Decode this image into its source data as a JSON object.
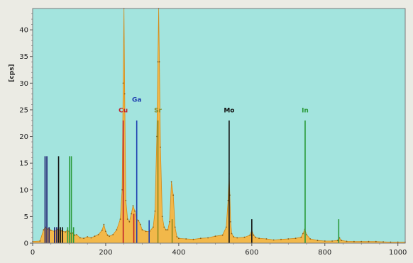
{
  "chart_data": {
    "type": "line",
    "title": "",
    "xlabel": "",
    "ylabel": "[cps]",
    "xlim": [
      0,
      1020
    ],
    "ylim": [
      0,
      44
    ],
    "x_ticks": [
      0,
      200,
      400,
      600,
      800,
      1000
    ],
    "y_ticks": [
      0,
      5,
      10,
      15,
      20,
      25,
      30,
      35,
      40
    ],
    "colors": {
      "plot_background": "#a3e4de",
      "spectrum_fill": "#f2b84a",
      "spectrum_line": "#d48a18",
      "frame": "#7a7a7a"
    },
    "spectrum": {
      "x": [
        0,
        20,
        30,
        35,
        40,
        45,
        50,
        60,
        70,
        80,
        90,
        95,
        100,
        105,
        110,
        115,
        120,
        130,
        140,
        150,
        160,
        170,
        180,
        190,
        195,
        200,
        205,
        210,
        220,
        230,
        240,
        245,
        248,
        250,
        252,
        255,
        260,
        265,
        270,
        275,
        280,
        285,
        290,
        295,
        300,
        310,
        320,
        330,
        335,
        340,
        343,
        345,
        347,
        350,
        355,
        360,
        365,
        370,
        375,
        380,
        385,
        390,
        395,
        400,
        420,
        440,
        460,
        480,
        500,
        520,
        530,
        535,
        538,
        540,
        542,
        545,
        550,
        560,
        580,
        595,
        600,
        605,
        610,
        620,
        640,
        660,
        680,
        700,
        720,
        735,
        740,
        745,
        750,
        760,
        780,
        800,
        820,
        835,
        840,
        845,
        860,
        880,
        900,
        920,
        940,
        960,
        980,
        1000,
        1020
      ],
      "y": [
        0.3,
        0.4,
        2.5,
        3,
        2.6,
        2.8,
        2.4,
        2.2,
        2.6,
        2.3,
        2.1,
        2.4,
        2.2,
        1.8,
        1.9,
        1.5,
        1.6,
        1,
        0.9,
        1.2,
        1,
        1.3,
        1.6,
        2.4,
        3.5,
        2.2,
        1.5,
        1.3,
        1.6,
        2.5,
        4.5,
        10,
        30,
        44,
        28,
        8,
        4.5,
        4,
        5.5,
        7,
        6,
        4.5,
        4.2,
        3.5,
        2.5,
        2.2,
        2.2,
        3,
        6,
        20,
        34,
        44,
        34,
        18,
        5,
        3,
        2.5,
        2.5,
        4,
        11.5,
        9,
        3,
        1.2,
        0.9,
        0.8,
        0.7,
        0.9,
        1,
        1.3,
        1.5,
        3,
        8,
        13,
        9,
        4,
        1.8,
        1.2,
        1,
        1.1,
        1.5,
        2.4,
        1.5,
        1.1,
        0.9,
        0.8,
        0.6,
        0.7,
        0.8,
        0.9,
        1.1,
        1.8,
        2.6,
        1.6,
        0.8,
        0.5,
        0.4,
        0.4,
        0.5,
        1,
        0.5,
        0.35,
        0.3,
        0.3,
        0.3,
        0.3,
        0.25,
        0.2,
        0.2,
        0.2
      ]
    },
    "markers": [
      {
        "x": 34,
        "height": 16.3,
        "color": "#1a1a6e"
      },
      {
        "x": 39,
        "height": 16.3,
        "color": "#1a1a6e"
      },
      {
        "x": 45,
        "height": 3,
        "color": "#1a1a6e"
      },
      {
        "x": 60,
        "height": 3,
        "color": "#1a1a6e"
      },
      {
        "x": 66,
        "height": 3,
        "color": "#1a1a6e"
      },
      {
        "x": 71,
        "height": 16.3,
        "color": "#111111"
      },
      {
        "x": 76,
        "height": 3,
        "color": "#111111"
      },
      {
        "x": 82,
        "height": 3,
        "color": "#111111"
      },
      {
        "x": 96,
        "height": 3,
        "color": "#2a9a3a"
      },
      {
        "x": 101,
        "height": 16.3,
        "color": "#2a9a3a"
      },
      {
        "x": 106,
        "height": 16.3,
        "color": "#2a9a3a"
      },
      {
        "x": 112,
        "height": 3,
        "color": "#2a9a3a"
      },
      {
        "x": 248,
        "height": 23,
        "color": "#c0202a"
      },
      {
        "x": 277,
        "height": 5.5,
        "color": "#c0202a"
      },
      {
        "x": 285,
        "height": 23,
        "color": "#1f3fb0"
      },
      {
        "x": 319,
        "height": 4.3,
        "color": "#1f3fb0"
      },
      {
        "x": 343,
        "height": 23,
        "color": "#8a8a20"
      },
      {
        "x": 382,
        "height": 4.5,
        "color": "#8a8a20"
      },
      {
        "x": 538,
        "height": 23,
        "color": "#111111"
      },
      {
        "x": 600,
        "height": 4.5,
        "color": "#111111"
      },
      {
        "x": 746,
        "height": 23,
        "color": "#2a9a3a"
      },
      {
        "x": 838,
        "height": 4.5,
        "color": "#2a9a3a"
      }
    ],
    "annotations": [
      {
        "text": "Cu",
        "x": 248,
        "y": 24.5,
        "color": "#c0202a"
      },
      {
        "text": "Ga",
        "x": 285,
        "y": 26.5,
        "color": "#1f3fb0"
      },
      {
        "text": "Sr",
        "x": 343,
        "y": 24.5,
        "color": "#8a8a20"
      },
      {
        "text": "Mo",
        "x": 538,
        "y": 24.5,
        "color": "#111111"
      },
      {
        "text": "In",
        "x": 746,
        "y": 24.5,
        "color": "#2a9a3a"
      }
    ]
  }
}
